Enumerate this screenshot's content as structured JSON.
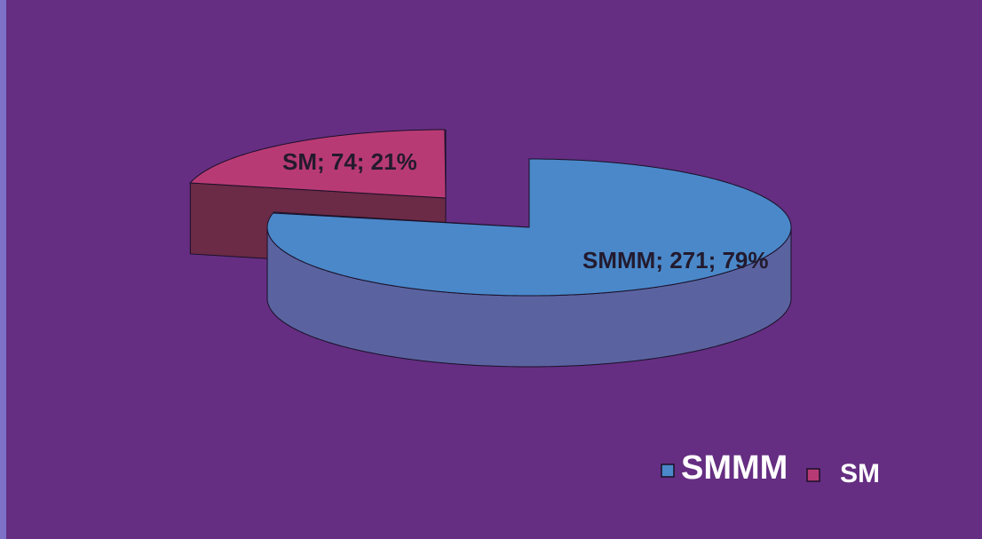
{
  "chart_data": {
    "type": "pie",
    "three_d": true,
    "exploded": true,
    "slices": [
      {
        "name": "SMMM",
        "value": 271,
        "percent": 79,
        "label": "SMMM; 271; 79%",
        "top_color": "#4a88c9",
        "side_color": "#5a63a0"
      },
      {
        "name": "SM",
        "value": 74,
        "percent": 21,
        "label": "SM; 74; 21%",
        "top_color": "#b83a75",
        "side_color": "#6b2a45"
      }
    ],
    "legend": {
      "placement": "bottom-right",
      "entries": [
        "SMMM",
        "SM"
      ]
    }
  },
  "colors": {
    "background": "#652e82",
    "left_edge": "#7d72c8",
    "outline": "#1a1028"
  }
}
